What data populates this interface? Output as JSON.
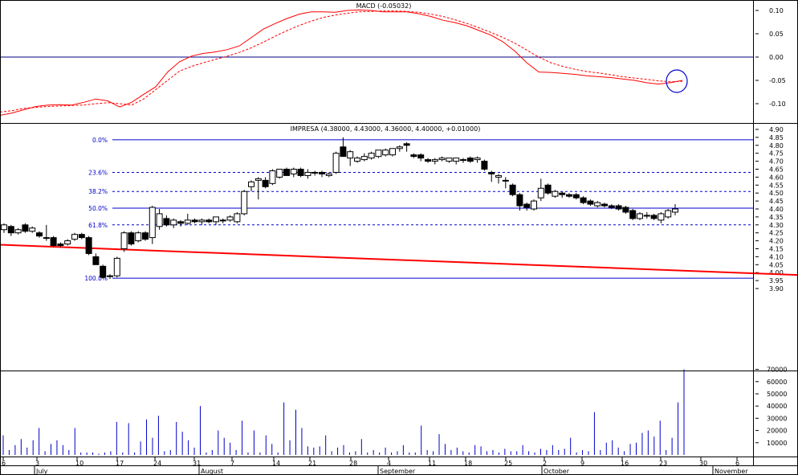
{
  "colors": {
    "background": "#ffffff",
    "frame": "#000000",
    "grid": "#cccccc",
    "macd_line": "#ff0000",
    "signal_line": "#ff0000",
    "trendline": "#ff0000",
    "fib_lines": "#0000cc",
    "volume_bars": "#0000cc",
    "candle_up_fill": "#ffffff",
    "candle_down_fill": "#000000",
    "marker_circle": "#0000cc"
  },
  "chart_data": [
    {
      "panel": "macd",
      "type": "line",
      "title": "MACD (-0.05032)",
      "y_ticks": [
        "0.10",
        "0.05",
        "0.00",
        "-0.05",
        "-0.10"
      ],
      "ylim": [
        -0.125,
        0.125
      ],
      "zero_line": true,
      "series": [
        {
          "style": "solid",
          "values": [
            -0.125,
            -0.12,
            -0.113,
            -0.106,
            -0.103,
            -0.102,
            -0.103,
            -0.097,
            -0.09,
            -0.094,
            -0.107,
            -0.097,
            -0.08,
            -0.064,
            -0.032,
            -0.01,
            0.002,
            0.008,
            0.011,
            0.016,
            0.024,
            0.042,
            0.06,
            0.072,
            0.083,
            0.092,
            0.097,
            0.097,
            0.096,
            0.1,
            0.101,
            0.1,
            0.097,
            0.097,
            0.097,
            0.093,
            0.087,
            0.079,
            0.074,
            0.067,
            0.057,
            0.047,
            0.033,
            0.013,
            -0.012,
            -0.032,
            -0.033,
            -0.035,
            -0.037,
            -0.04,
            -0.042,
            -0.044,
            -0.047,
            -0.05,
            -0.055,
            -0.058,
            -0.055,
            -0.05
          ]
        },
        {
          "style": "dashed",
          "values": [
            -0.118,
            -0.115,
            -0.11,
            -0.108,
            -0.106,
            -0.105,
            -0.104,
            -0.103,
            -0.1,
            -0.098,
            -0.1,
            -0.103,
            -0.09,
            -0.07,
            -0.05,
            -0.03,
            -0.02,
            -0.012,
            -0.005,
            0.002,
            0.01,
            0.02,
            0.032,
            0.045,
            0.057,
            0.068,
            0.077,
            0.085,
            0.09,
            0.094,
            0.097,
            0.098,
            0.099,
            0.099,
            0.098,
            0.096,
            0.092,
            0.087,
            0.08,
            0.072,
            0.063,
            0.053,
            0.042,
            0.03,
            0.015,
            0.0,
            -0.012,
            -0.02,
            -0.026,
            -0.031,
            -0.034,
            -0.038,
            -0.042,
            -0.045,
            -0.048,
            -0.051,
            -0.053,
            -0.052
          ]
        }
      ],
      "marker": "circle around latest value"
    },
    {
      "panel": "price",
      "type": "candlestick",
      "title": "IMPRESA (4.38000, 4.43000, 4.36000, 4.40000, +0.01000)",
      "ylim": [
        3.88,
        4.9
      ],
      "y_ticks": [
        "4.90",
        "4.85",
        "4.80",
        "4.75",
        "4.70",
        "4.65",
        "4.60",
        "4.55",
        "4.50",
        "4.45",
        "4.40",
        "4.35",
        "4.30",
        "4.25",
        "4.20",
        "4.15",
        "4.10",
        "4.05",
        "4.00",
        "3.95",
        "3.90"
      ],
      "fibonacci": [
        {
          "label": "0.0%",
          "value": 4.835,
          "style": "solid"
        },
        {
          "label": "23.6%",
          "value": 4.63,
          "style": "dashed"
        },
        {
          "label": "38.2%",
          "value": 4.51,
          "style": "dashed"
        },
        {
          "label": "50.0%",
          "value": 4.405,
          "style": "solid"
        },
        {
          "label": "61.8%",
          "value": 4.3,
          "style": "dashed"
        },
        {
          "label": "100.0%",
          "value": 3.965,
          "style": "solid"
        }
      ],
      "trendline": {
        "from_index": 0,
        "from_value": 4.175,
        "to_index": 103,
        "to_value": 3.985
      },
      "candles": [
        {
          "o": 4.27,
          "h": 4.31,
          "l": 4.25,
          "c": 4.3
        },
        {
          "o": 4.29,
          "h": 4.3,
          "l": 4.23,
          "c": 4.25
        },
        {
          "o": 4.25,
          "h": 4.28,
          "l": 4.24,
          "c": 4.27
        },
        {
          "o": 4.3,
          "h": 4.31,
          "l": 4.25,
          "c": 4.26
        },
        {
          "o": 4.26,
          "h": 4.29,
          "l": 4.25,
          "c": 4.28
        },
        {
          "o": 4.25,
          "h": 4.26,
          "l": 4.22,
          "c": 4.23
        },
        {
          "o": 4.22,
          "h": 4.3,
          "l": 4.2,
          "c": 4.22
        },
        {
          "o": 4.22,
          "h": 4.23,
          "l": 4.16,
          "c": 4.17
        },
        {
          "o": 4.18,
          "h": 4.19,
          "l": 4.16,
          "c": 4.17
        },
        {
          "o": 4.18,
          "h": 4.21,
          "l": 4.17,
          "c": 4.2
        },
        {
          "o": 4.21,
          "h": 4.25,
          "l": 4.2,
          "c": 4.24
        },
        {
          "o": 4.24,
          "h": 4.25,
          "l": 4.21,
          "c": 4.22
        },
        {
          "o": 4.22,
          "h": 4.23,
          "l": 4.11,
          "c": 4.12
        },
        {
          "o": 4.1,
          "h": 4.12,
          "l": 4.05,
          "c": 4.05
        },
        {
          "o": 4.04,
          "h": 4.05,
          "l": 3.96,
          "c": 3.97
        },
        {
          "o": 3.98,
          "h": 3.99,
          "l": 3.96,
          "c": 3.98
        },
        {
          "o": 3.98,
          "h": 4.1,
          "l": 3.97,
          "c": 4.09
        },
        {
          "o": 4.15,
          "h": 4.26,
          "l": 4.13,
          "c": 4.25
        },
        {
          "o": 4.25,
          "h": 4.26,
          "l": 4.17,
          "c": 4.18
        },
        {
          "o": 4.2,
          "h": 4.26,
          "l": 4.19,
          "c": 4.25
        },
        {
          "o": 4.25,
          "h": 4.26,
          "l": 4.2,
          "c": 4.21
        },
        {
          "o": 4.22,
          "h": 4.42,
          "l": 4.18,
          "c": 4.41
        },
        {
          "o": 4.29,
          "h": 4.4,
          "l": 4.27,
          "c": 4.37
        },
        {
          "o": 4.34,
          "h": 4.36,
          "l": 4.29,
          "c": 4.3
        },
        {
          "o": 4.3,
          "h": 4.34,
          "l": 4.28,
          "c": 4.33
        },
        {
          "o": 4.32,
          "h": 4.33,
          "l": 4.29,
          "c": 4.31
        },
        {
          "o": 4.31,
          "h": 4.37,
          "l": 4.3,
          "c": 4.33
        },
        {
          "o": 4.33,
          "h": 4.34,
          "l": 4.31,
          "c": 4.32
        },
        {
          "o": 4.32,
          "h": 4.34,
          "l": 4.3,
          "c": 4.33
        },
        {
          "o": 4.33,
          "h": 4.34,
          "l": 4.31,
          "c": 4.32
        },
        {
          "o": 4.32,
          "h": 4.35,
          "l": 4.3,
          "c": 4.35
        },
        {
          "o": 4.33,
          "h": 4.34,
          "l": 4.31,
          "c": 4.33
        },
        {
          "o": 4.33,
          "h": 4.36,
          "l": 4.32,
          "c": 4.35
        },
        {
          "o": 4.32,
          "h": 4.38,
          "l": 4.31,
          "c": 4.37
        },
        {
          "o": 4.37,
          "h": 4.52,
          "l": 4.36,
          "c": 4.51
        },
        {
          "o": 4.54,
          "h": 4.58,
          "l": 4.51,
          "c": 4.57
        },
        {
          "o": 4.58,
          "h": 4.6,
          "l": 4.46,
          "c": 4.59
        },
        {
          "o": 4.58,
          "h": 4.6,
          "l": 4.53,
          "c": 4.54
        },
        {
          "o": 4.56,
          "h": 4.65,
          "l": 4.55,
          "c": 4.64
        },
        {
          "o": 4.6,
          "h": 4.65,
          "l": 4.59,
          "c": 4.65
        },
        {
          "o": 4.65,
          "h": 4.66,
          "l": 4.61,
          "c": 4.61
        },
        {
          "o": 4.62,
          "h": 4.66,
          "l": 4.6,
          "c": 4.65
        },
        {
          "o": 4.65,
          "h": 4.66,
          "l": 4.6,
          "c": 4.61
        },
        {
          "o": 4.61,
          "h": 4.65,
          "l": 4.59,
          "c": 4.63
        },
        {
          "o": 4.63,
          "h": 4.64,
          "l": 4.61,
          "c": 4.63
        },
        {
          "o": 4.63,
          "h": 4.64,
          "l": 4.6,
          "c": 4.62
        },
        {
          "o": 4.61,
          "h": 4.63,
          "l": 4.6,
          "c": 4.62
        },
        {
          "o": 4.63,
          "h": 4.76,
          "l": 4.62,
          "c": 4.75
        },
        {
          "o": 4.79,
          "h": 4.85,
          "l": 4.73,
          "c": 4.73
        },
        {
          "o": 4.72,
          "h": 4.77,
          "l": 4.67,
          "c": 4.76
        },
        {
          "o": 4.7,
          "h": 4.73,
          "l": 4.69,
          "c": 4.72
        },
        {
          "o": 4.71,
          "h": 4.75,
          "l": 4.7,
          "c": 4.73
        },
        {
          "o": 4.72,
          "h": 4.76,
          "l": 4.71,
          "c": 4.75
        },
        {
          "o": 4.73,
          "h": 4.77,
          "l": 4.72,
          "c": 4.77
        },
        {
          "o": 4.74,
          "h": 4.78,
          "l": 4.73,
          "c": 4.77
        },
        {
          "o": 4.74,
          "h": 4.77,
          "l": 4.73,
          "c": 4.78
        },
        {
          "o": 4.78,
          "h": 4.8,
          "l": 4.76,
          "c": 4.79
        },
        {
          "o": 4.81,
          "h": 4.82,
          "l": 4.76,
          "c": 4.8
        },
        {
          "o": 4.74,
          "h": 4.75,
          "l": 4.72,
          "c": 4.73
        },
        {
          "o": 4.74,
          "h": 4.75,
          "l": 4.7,
          "c": 4.72
        },
        {
          "o": 4.71,
          "h": 4.72,
          "l": 4.69,
          "c": 4.7
        },
        {
          "o": 4.7,
          "h": 4.72,
          "l": 4.68,
          "c": 4.71
        },
        {
          "o": 4.71,
          "h": 4.73,
          "l": 4.7,
          "c": 4.72
        },
        {
          "o": 4.7,
          "h": 4.72,
          "l": 4.69,
          "c": 4.72
        },
        {
          "o": 4.7,
          "h": 4.72,
          "l": 4.68,
          "c": 4.72
        },
        {
          "o": 4.71,
          "h": 4.72,
          "l": 4.69,
          "c": 4.71
        },
        {
          "o": 4.72,
          "h": 4.73,
          "l": 4.69,
          "c": 4.7
        },
        {
          "o": 4.71,
          "h": 4.73,
          "l": 4.69,
          "c": 4.72
        },
        {
          "o": 4.7,
          "h": 4.71,
          "l": 4.64,
          "c": 4.65
        },
        {
          "o": 4.63,
          "h": 4.64,
          "l": 4.57,
          "c": 4.62
        },
        {
          "o": 4.6,
          "h": 4.62,
          "l": 4.56,
          "c": 4.61
        },
        {
          "o": 4.58,
          "h": 4.6,
          "l": 4.53,
          "c": 4.58
        },
        {
          "o": 4.55,
          "h": 4.56,
          "l": 4.48,
          "c": 4.49
        },
        {
          "o": 4.49,
          "h": 4.5,
          "l": 4.39,
          "c": 4.42
        },
        {
          "o": 4.43,
          "h": 4.44,
          "l": 4.39,
          "c": 4.41
        },
        {
          "o": 4.4,
          "h": 4.46,
          "l": 4.39,
          "c": 4.45
        },
        {
          "o": 4.47,
          "h": 4.59,
          "l": 4.45,
          "c": 4.53
        },
        {
          "o": 4.55,
          "h": 4.56,
          "l": 4.49,
          "c": 4.5
        },
        {
          "o": 4.48,
          "h": 4.52,
          "l": 4.47,
          "c": 4.51
        },
        {
          "o": 4.5,
          "h": 4.51,
          "l": 4.47,
          "c": 4.49
        },
        {
          "o": 4.49,
          "h": 4.5,
          "l": 4.47,
          "c": 4.48
        },
        {
          "o": 4.49,
          "h": 4.5,
          "l": 4.46,
          "c": 4.47
        },
        {
          "o": 4.47,
          "h": 4.48,
          "l": 4.43,
          "c": 4.44
        },
        {
          "o": 4.45,
          "h": 4.46,
          "l": 4.42,
          "c": 4.43
        },
        {
          "o": 4.42,
          "h": 4.45,
          "l": 4.41,
          "c": 4.44
        },
        {
          "o": 4.43,
          "h": 4.44,
          "l": 4.41,
          "c": 4.42
        },
        {
          "o": 4.42,
          "h": 4.43,
          "l": 4.4,
          "c": 4.41
        },
        {
          "o": 4.42,
          "h": 4.43,
          "l": 4.39,
          "c": 4.4
        },
        {
          "o": 4.41,
          "h": 4.42,
          "l": 4.37,
          "c": 4.38
        },
        {
          "o": 4.39,
          "h": 4.4,
          "l": 4.33,
          "c": 4.34
        },
        {
          "o": 4.34,
          "h": 4.38,
          "l": 4.33,
          "c": 4.37
        },
        {
          "o": 4.36,
          "h": 4.38,
          "l": 4.34,
          "c": 4.36
        },
        {
          "o": 4.36,
          "h": 4.37,
          "l": 4.33,
          "c": 4.34
        },
        {
          "o": 4.33,
          "h": 4.38,
          "l": 4.31,
          "c": 4.37
        },
        {
          "o": 4.35,
          "h": 4.4,
          "l": 4.34,
          "c": 4.39
        },
        {
          "o": 4.38,
          "h": 4.43,
          "l": 4.36,
          "c": 4.4
        }
      ]
    },
    {
      "panel": "volume",
      "type": "bar",
      "y_ticks": [
        "70000",
        "60000",
        "50000",
        "40000",
        "30000",
        "20000",
        "10000"
      ],
      "ylim": [
        0,
        75000
      ],
      "values": [
        16000,
        4000,
        8000,
        13000,
        6000,
        12000,
        22000,
        3000,
        9000,
        12000,
        8000,
        4000,
        22000,
        2000,
        2000,
        2000,
        1000,
        2000,
        3000,
        27000,
        2000,
        26000,
        2000,
        11000,
        29000,
        14000,
        32000,
        3000,
        4000,
        27000,
        19000,
        12000,
        6000,
        40000,
        2000,
        4000,
        20000,
        14000,
        10000,
        4000,
        28000,
        2000,
        20000,
        2000,
        16000,
        9000,
        2000,
        43000,
        12000,
        37000,
        22000,
        7000,
        6000,
        7000,
        16000,
        3000,
        6000,
        8000,
        2000,
        3000,
        13000,
        2000,
        4000,
        2000,
        6000,
        2000,
        3000,
        8000,
        2000,
        2000,
        24000,
        4000,
        3000,
        17000,
        9000,
        4000,
        6000,
        3000,
        2000,
        8000,
        7000,
        3000,
        4000,
        2000,
        5000,
        3000,
        3000,
        8000,
        3000,
        2000,
        5000,
        4000,
        8000,
        4000,
        5000,
        14000,
        2000,
        4000,
        3000,
        35000,
        4000,
        10000,
        12000,
        6000,
        3000,
        9000,
        10000,
        18000,
        20000,
        15000,
        28000,
        4000,
        14000,
        43000,
        70000
      ],
      "volume_bar_count_note": "one bar per trading day plus intraday spikes"
    }
  ],
  "x_axis": {
    "day_ticks": [
      "6",
      "3",
      "10",
      "17",
      "24",
      "31",
      "7",
      "14",
      "21",
      "28",
      "4",
      "11",
      "18",
      "25",
      "2",
      "9",
      "16",
      "23",
      "30",
      "6"
    ],
    "months": [
      "July",
      "August",
      "September",
      "October",
      "November"
    ]
  }
}
